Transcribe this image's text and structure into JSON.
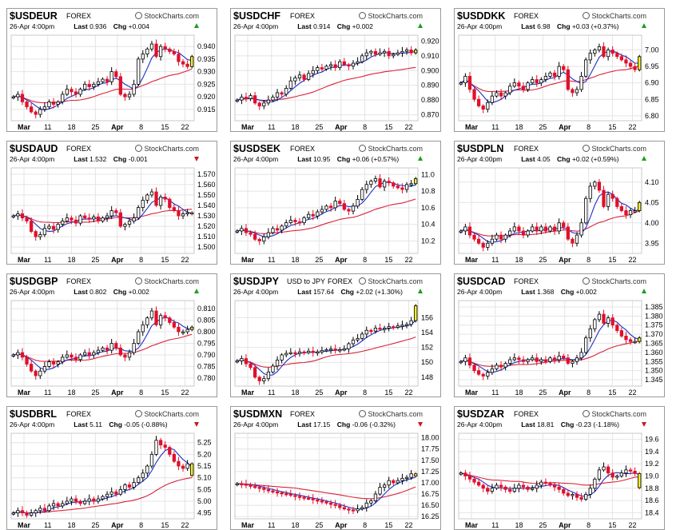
{
  "colors": {
    "up": "#ffffff",
    "down": "#e0102b",
    "ma_short": "#1c2fc7",
    "ma_long": "#d8243a",
    "last_bar": "#f2ec2a",
    "grid": "#e4e4e4"
  },
  "icons": {
    "logo": "stockcharts-logo-icon",
    "up": "triangle-up-icon",
    "down": "triangle-down-icon"
  },
  "brand": "StockCharts.com",
  "chart_data": [
    {
      "type": "candlestick",
      "symbol": "$USDEUR",
      "market": "FOREX",
      "date": "26-Apr 4:00pm",
      "last_label": "Last",
      "last": "0.936",
      "chg_label": "Chg",
      "chg": "+0.004",
      "direction": "up",
      "yticks": [
        "0.940",
        "0.935",
        "0.930",
        "0.925",
        "0.920",
        "0.915"
      ],
      "ylim": [
        0.9105,
        0.9445
      ],
      "xticks": [
        "Mar",
        "11",
        "18",
        "25",
        "Apr",
        "8",
        "15",
        "22"
      ],
      "closes": [
        0.92,
        0.921,
        0.918,
        0.916,
        0.914,
        0.913,
        0.915,
        0.916,
        0.918,
        0.917,
        0.918,
        0.921,
        0.923,
        0.922,
        0.921,
        0.923,
        0.925,
        0.924,
        0.925,
        0.926,
        0.927,
        0.926,
        0.93,
        0.928,
        0.921,
        0.92,
        0.921,
        0.925,
        0.935,
        0.937,
        0.939,
        0.941,
        0.936,
        0.94,
        0.939,
        0.938,
        0.937,
        0.934,
        0.933,
        0.932,
        0.936
      ]
    },
    {
      "type": "candlestick",
      "symbol": "$USDCHF",
      "market": "FOREX",
      "date": "26-Apr 4:00pm",
      "last_label": "Last",
      "last": "0.914",
      "chg_label": "Chg",
      "chg": "+0.002",
      "direction": "up",
      "yticks": [
        "0.920",
        "0.910",
        "0.900",
        "0.890",
        "0.880",
        "0.870"
      ],
      "ylim": [
        0.866,
        0.924
      ],
      "xticks": [
        "Mar",
        "11",
        "18",
        "25",
        "Apr",
        "8",
        "15",
        "22"
      ],
      "closes": [
        0.88,
        0.882,
        0.881,
        0.883,
        0.878,
        0.876,
        0.878,
        0.88,
        0.882,
        0.885,
        0.884,
        0.888,
        0.893,
        0.895,
        0.897,
        0.894,
        0.898,
        0.9,
        0.902,
        0.901,
        0.903,
        0.904,
        0.902,
        0.906,
        0.904,
        0.903,
        0.905,
        0.906,
        0.91,
        0.912,
        0.913,
        0.911,
        0.912,
        0.913,
        0.91,
        0.911,
        0.912,
        0.913,
        0.914,
        0.912,
        0.914
      ]
    },
    {
      "type": "candlestick",
      "symbol": "$USDDKK",
      "market": "FOREX",
      "date": "26-Apr 4:00pm",
      "last_label": "Last",
      "last": "6.98",
      "chg_label": "Chg",
      "chg": "+0.03 (+0.37%)",
      "direction": "up",
      "yticks": [
        "7.00",
        "6.95",
        "6.90",
        "6.85",
        "6.80"
      ],
      "ylim": [
        6.785,
        7.045
      ],
      "xticks": [
        "Mar",
        "11",
        "18",
        "25",
        "Apr",
        "8",
        "15",
        "22"
      ],
      "closes": [
        6.9,
        6.92,
        6.88,
        6.85,
        6.83,
        6.82,
        6.84,
        6.86,
        6.87,
        6.86,
        6.87,
        6.89,
        6.9,
        6.89,
        6.88,
        6.9,
        6.91,
        6.9,
        6.91,
        6.92,
        6.93,
        6.92,
        6.95,
        6.94,
        6.88,
        6.87,
        6.88,
        6.92,
        6.97,
        6.99,
        7.0,
        7.01,
        6.98,
        7.0,
        6.99,
        6.98,
        6.97,
        6.96,
        6.95,
        6.94,
        6.98
      ]
    },
    {
      "type": "candlestick",
      "symbol": "$USDAUD",
      "market": "FOREX",
      "date": "26-Apr 4:00pm",
      "last_label": "Last",
      "last": "1.532",
      "chg_label": "Chg",
      "chg": "-0.001",
      "direction": "down",
      "yticks": [
        "1.570",
        "1.560",
        "1.550",
        "1.540",
        "1.530",
        "1.520",
        "1.510",
        "1.500"
      ],
      "ylim": [
        1.494,
        1.576
      ],
      "xticks": [
        "Mar",
        "11",
        "18",
        "25",
        "Apr",
        "8",
        "15",
        "22"
      ],
      "closes": [
        1.53,
        1.532,
        1.528,
        1.525,
        1.515,
        1.51,
        1.512,
        1.518,
        1.52,
        1.517,
        1.522,
        1.525,
        1.528,
        1.526,
        1.523,
        1.53,
        1.528,
        1.527,
        1.529,
        1.525,
        1.528,
        1.53,
        1.535,
        1.533,
        1.52,
        1.522,
        1.525,
        1.528,
        1.538,
        1.545,
        1.55,
        1.553,
        1.54,
        1.548,
        1.546,
        1.538,
        1.535,
        1.53,
        1.532,
        1.533,
        1.532
      ]
    },
    {
      "type": "candlestick",
      "symbol": "$USDSEK",
      "market": "FOREX",
      "date": "26-Apr 4:00pm",
      "last_label": "Last",
      "last": "10.95",
      "chg_label": "Chg",
      "chg": "+0.06 (+0.57%)",
      "direction": "up",
      "yticks": [
        "11.0",
        "10.8",
        "10.6",
        "10.4",
        "10.2"
      ],
      "ylim": [
        10.05,
        11.08
      ],
      "xticks": [
        "Mar",
        "11",
        "18",
        "25",
        "Apr",
        "8",
        "15",
        "22"
      ],
      "closes": [
        10.32,
        10.35,
        10.3,
        10.28,
        10.22,
        10.2,
        10.25,
        10.3,
        10.35,
        10.33,
        10.38,
        10.42,
        10.45,
        10.43,
        10.42,
        10.48,
        10.52,
        10.5,
        10.55,
        10.58,
        10.62,
        10.6,
        10.68,
        10.65,
        10.58,
        10.56,
        10.62,
        10.7,
        10.82,
        10.88,
        10.92,
        10.95,
        10.85,
        10.92,
        10.9,
        10.86,
        10.84,
        10.82,
        10.88,
        10.89,
        10.95
      ]
    },
    {
      "type": "candlestick",
      "symbol": "$USDPLN",
      "market": "FOREX",
      "date": "26-Apr 4:00pm",
      "last_label": "Last",
      "last": "4.05",
      "chg_label": "Chg",
      "chg": "+0.02 (+0.59%)",
      "direction": "up",
      "yticks": [
        "4.10",
        "4.05",
        "4.00",
        "3.95"
      ],
      "ylim": [
        3.925,
        4.135
      ],
      "xticks": [
        "Mar",
        "11",
        "18",
        "25",
        "Apr",
        "8",
        "15",
        "22"
      ],
      "closes": [
        3.98,
        3.99,
        3.97,
        3.96,
        3.95,
        3.94,
        3.95,
        3.96,
        3.97,
        3.96,
        3.97,
        3.98,
        3.99,
        3.98,
        3.97,
        3.98,
        3.99,
        3.98,
        3.99,
        3.98,
        3.99,
        3.98,
        4.0,
        3.99,
        3.96,
        3.95,
        3.97,
        4.0,
        4.06,
        4.09,
        4.1,
        4.08,
        4.04,
        4.07,
        4.06,
        4.04,
        4.03,
        4.02,
        4.03,
        4.03,
        4.05
      ]
    },
    {
      "type": "candlestick",
      "symbol": "$USDGBP",
      "market": "FOREX",
      "date": "26-Apr 4:00pm",
      "last_label": "Last",
      "last": "0.802",
      "chg_label": "Chg",
      "chg": "+0.002",
      "direction": "up",
      "yticks": [
        "0.810",
        "0.805",
        "0.800",
        "0.795",
        "0.790",
        "0.785",
        "0.780"
      ],
      "ylim": [
        0.7765,
        0.8135
      ],
      "xticks": [
        "Mar",
        "11",
        "18",
        "25",
        "Apr",
        "8",
        "15",
        "22"
      ],
      "closes": [
        0.79,
        0.791,
        0.789,
        0.786,
        0.783,
        0.781,
        0.783,
        0.785,
        0.787,
        0.786,
        0.787,
        0.789,
        0.79,
        0.789,
        0.788,
        0.79,
        0.791,
        0.79,
        0.791,
        0.792,
        0.793,
        0.792,
        0.795,
        0.793,
        0.79,
        0.789,
        0.791,
        0.795,
        0.8,
        0.803,
        0.806,
        0.809,
        0.803,
        0.807,
        0.806,
        0.804,
        0.802,
        0.8,
        0.8,
        0.801,
        0.802
      ]
    },
    {
      "type": "candlestick",
      "symbol": "$USDJPY",
      "market": "FOREX",
      "subtitle": "USD to JPY",
      "date": "26-Apr 4:00pm",
      "last_label": "Last",
      "last": "157.64",
      "chg_label": "Chg",
      "chg": "+2.02 (+1.30%)",
      "direction": "up",
      "yticks": [
        "156",
        "154",
        "152",
        "150",
        "148"
      ],
      "ylim": [
        146.8,
        158.3
      ],
      "xticks": [
        "Mar",
        "11",
        "18",
        "25",
        "Apr",
        "8",
        "15",
        "22"
      ],
      "closes": [
        150.2,
        150.5,
        149.8,
        149.3,
        148.0,
        147.5,
        147.8,
        148.7,
        149.5,
        150.3,
        151.0,
        151.2,
        151.3,
        151.2,
        151.4,
        151.3,
        151.5,
        151.3,
        151.4,
        151.6,
        151.7,
        151.8,
        151.6,
        151.7,
        151.8,
        152.5,
        153.0,
        153.2,
        153.8,
        154.3,
        154.2,
        154.6,
        154.5,
        154.6,
        154.8,
        154.7,
        154.9,
        155.0,
        155.1,
        155.6,
        157.6
      ]
    },
    {
      "type": "candlestick",
      "symbol": "$USDCAD",
      "market": "FOREX",
      "date": "26-Apr 4:00pm",
      "last_label": "Last",
      "last": "1.368",
      "chg_label": "Chg",
      "chg": "+0.002",
      "direction": "up",
      "yticks": [
        "1.385",
        "1.380",
        "1.375",
        "1.370",
        "1.365",
        "1.360",
        "1.355",
        "1.350",
        "1.345"
      ],
      "ylim": [
        1.3415,
        1.3885
      ],
      "xticks": [
        "Mar",
        "11",
        "18",
        "25",
        "Apr",
        "8",
        "15",
        "22"
      ],
      "closes": [
        1.355,
        1.357,
        1.353,
        1.35,
        1.348,
        1.347,
        1.349,
        1.351,
        1.353,
        1.352,
        1.354,
        1.356,
        1.357,
        1.356,
        1.355,
        1.356,
        1.357,
        1.355,
        1.356,
        1.355,
        1.357,
        1.356,
        1.358,
        1.357,
        1.354,
        1.355,
        1.357,
        1.36,
        1.368,
        1.373,
        1.378,
        1.381,
        1.376,
        1.379,
        1.375,
        1.372,
        1.369,
        1.367,
        1.366,
        1.366,
        1.368
      ]
    },
    {
      "type": "candlestick",
      "symbol": "$USDBRL",
      "market": "FOREX",
      "date": "26-Apr 4:00pm",
      "last_label": "Last",
      "last": "5.11",
      "chg_label": "Chg",
      "chg": "-0.05 (-0.88%)",
      "direction": "down",
      "yticks": [
        "5.25",
        "5.20",
        "5.15",
        "5.10",
        "5.05",
        "5.00",
        "4.95"
      ],
      "ylim": [
        4.925,
        5.29
      ],
      "xticks": [
        "Mar",
        "11",
        "18",
        "25",
        "Apr",
        "8",
        "15",
        "22"
      ],
      "closes": [
        4.95,
        4.96,
        4.95,
        4.94,
        4.95,
        4.96,
        4.97,
        4.96,
        4.98,
        4.99,
        4.98,
        4.99,
        5.0,
        5.01,
        5.0,
        4.99,
        5.0,
        5.01,
        5.0,
        5.01,
        5.02,
        5.03,
        5.04,
        5.03,
        5.05,
        5.07,
        5.06,
        5.08,
        5.1,
        5.12,
        5.15,
        5.2,
        5.26,
        5.24,
        5.23,
        5.2,
        5.17,
        5.15,
        5.14,
        5.16,
        5.11
      ]
    },
    {
      "type": "candlestick",
      "symbol": "$USDMXN",
      "market": "FOREX",
      "date": "26-Apr 4:00pm",
      "last_label": "Last",
      "last": "17.15",
      "chg_label": "Chg",
      "chg": "-0.06 (-0.32%)",
      "direction": "down",
      "yticks": [
        "18.00",
        "17.75",
        "17.50",
        "17.25",
        "17.00",
        "16.75",
        "16.50",
        "16.25"
      ],
      "ylim": [
        16.2,
        18.1
      ],
      "xticks": [
        "Mar",
        "11",
        "18",
        "25",
        "Apr",
        "8",
        "15",
        "22"
      ],
      "closes": [
        16.98,
        16.97,
        16.95,
        16.92,
        16.9,
        16.88,
        16.85,
        16.82,
        16.8,
        16.78,
        16.76,
        16.75,
        16.72,
        16.7,
        16.68,
        16.66,
        16.65,
        16.62,
        16.6,
        16.58,
        16.55,
        16.52,
        16.5,
        16.45,
        16.42,
        16.4,
        16.38,
        16.42,
        16.45,
        16.55,
        16.6,
        16.75,
        16.9,
        16.95,
        17.05,
        17.0,
        17.05,
        17.1,
        17.12,
        17.2,
        17.15
      ]
    },
    {
      "type": "candlestick",
      "symbol": "$USDZAR",
      "market": "FOREX",
      "date": "26-Apr 4:00pm",
      "last_label": "Last",
      "last": "18.81",
      "chg_label": "Chg",
      "chg": "-0.23 (-1.18%)",
      "direction": "down",
      "yticks": [
        "19.6",
        "19.4",
        "19.2",
        "19.0",
        "18.8",
        "18.6",
        "18.4"
      ],
      "ylim": [
        18.3,
        19.7
      ],
      "xticks": [
        "Mar",
        "11",
        "18",
        "25",
        "Apr",
        "8",
        "15",
        "22"
      ],
      "closes": [
        19.05,
        19.0,
        18.95,
        18.9,
        18.85,
        18.8,
        18.75,
        18.8,
        18.85,
        18.82,
        18.78,
        18.75,
        18.8,
        18.85,
        18.82,
        18.78,
        18.8,
        18.85,
        18.9,
        18.88,
        18.85,
        18.82,
        18.78,
        18.72,
        18.68,
        18.7,
        18.65,
        18.62,
        18.7,
        18.8,
        18.95,
        19.1,
        19.15,
        19.05,
        18.98,
        19.0,
        19.05,
        19.1,
        19.08,
        19.04,
        18.81
      ]
    }
  ]
}
